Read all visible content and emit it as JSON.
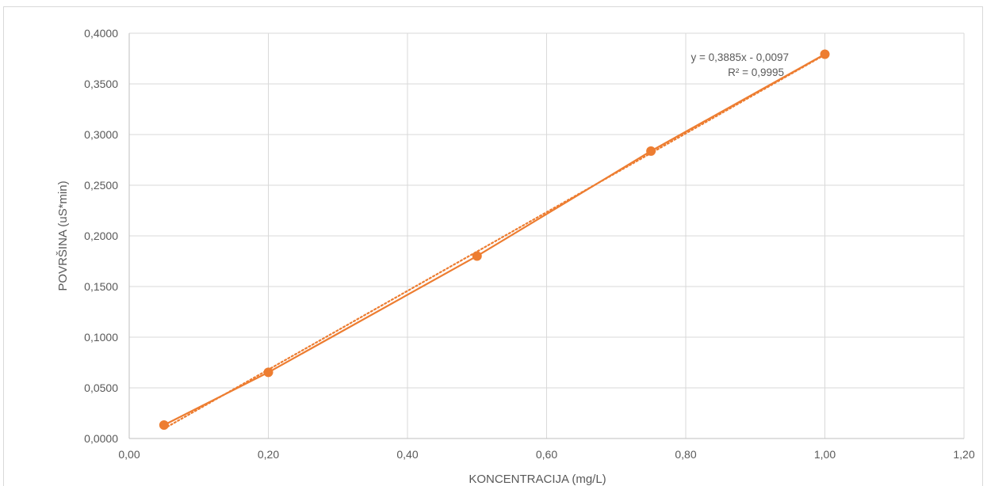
{
  "chart_data": {
    "type": "scatter",
    "title": "",
    "xlabel": "KONCENTRACIJA (mg/L)",
    "ylabel": "POVRŠINA (uS*min)",
    "xlim": [
      0,
      1.2
    ],
    "ylim": [
      0,
      0.4
    ],
    "x_ticks": [
      0,
      0.2,
      0.4,
      0.6,
      0.8,
      1.0,
      1.2
    ],
    "x_tick_labels": [
      "0,00",
      "0,20",
      "0,40",
      "0,60",
      "0,80",
      "1,00",
      "1,20"
    ],
    "y_ticks": [
      0,
      0.05,
      0.1,
      0.15,
      0.2,
      0.25,
      0.3,
      0.35,
      0.4
    ],
    "y_tick_labels": [
      "0,0000",
      "0,0500",
      "0,1000",
      "0,1500",
      "0,2000",
      "0,2500",
      "0,3000",
      "0,3500",
      "0,4000"
    ],
    "grid": true,
    "series": [
      {
        "x": [
          0.05,
          0.2,
          0.5,
          0.75,
          1.0
        ],
        "y": [
          0.0133,
          0.0653,
          0.1801,
          0.2837,
          0.3793
        ],
        "color": "#ED7D31",
        "line": "solid",
        "markers": true
      }
    ],
    "trendline": {
      "type": "linear",
      "slope": 0.3885,
      "intercept": -0.0097,
      "color": "#ED7D31",
      "style": "dotted",
      "equation_label": "y = 0,3885x - 0,0097",
      "r2_label": "R² = 0,9995"
    }
  }
}
